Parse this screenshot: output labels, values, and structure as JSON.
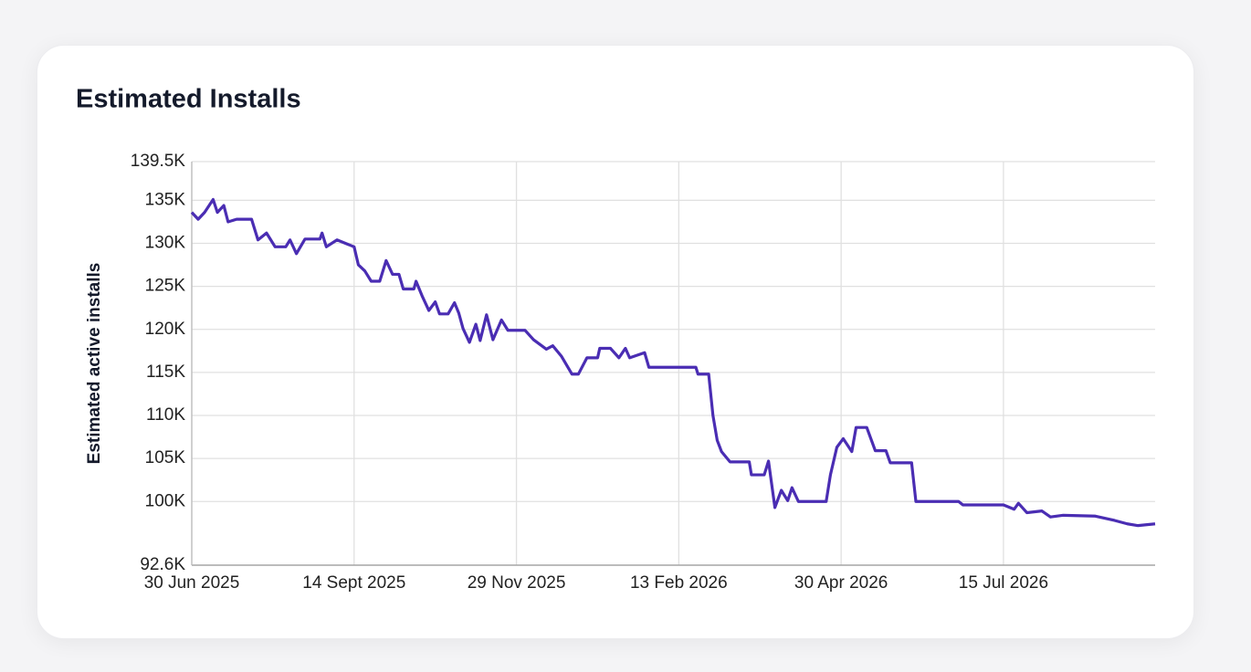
{
  "chart_data": {
    "type": "line",
    "title": "Estimated Installs",
    "ylabel": "Estimated active installs",
    "color": "#4a2db3",
    "grid": true,
    "xlim": [
      "2025-06-30",
      "2026-09-24"
    ],
    "xticks": [
      {
        "value": "2025-06-30",
        "label": "30 Jun 2025"
      },
      {
        "value": "2025-09-14",
        "label": "14 Sept 2025"
      },
      {
        "value": "2025-11-29",
        "label": "29 Nov 2025"
      },
      {
        "value": "2026-02-13",
        "label": "13 Feb 2026"
      },
      {
        "value": "2026-04-30",
        "label": "30 Apr 2026"
      },
      {
        "value": "2026-07-15",
        "label": "15 Jul 2026"
      }
    ],
    "ylim": [
      92600,
      139500
    ],
    "yticks": [
      {
        "value": 92600,
        "label": "92.6K"
      },
      {
        "value": 100000,
        "label": "100K"
      },
      {
        "value": 105000,
        "label": "105K"
      },
      {
        "value": 110000,
        "label": "110K"
      },
      {
        "value": 115000,
        "label": "115K"
      },
      {
        "value": 120000,
        "label": "120K"
      },
      {
        "value": 125000,
        "label": "125K"
      },
      {
        "value": 130000,
        "label": "130K"
      },
      {
        "value": 135000,
        "label": "135K"
      },
      {
        "value": 139500,
        "label": "139.5K"
      }
    ],
    "x": [
      "2025-06-30",
      "2025-07-03",
      "2025-07-06",
      "2025-07-10",
      "2025-07-12",
      "2025-07-15",
      "2025-07-17",
      "2025-07-21",
      "2025-07-28",
      "2025-07-31",
      "2025-08-04",
      "2025-08-06",
      "2025-08-08",
      "2025-08-13",
      "2025-08-15",
      "2025-08-18",
      "2025-08-22",
      "2025-08-29",
      "2025-08-30",
      "2025-09-01",
      "2025-09-06",
      "2025-09-14",
      "2025-09-16",
      "2025-09-19",
      "2025-09-22",
      "2025-09-26",
      "2025-09-29",
      "2025-10-02",
      "2025-10-05",
      "2025-10-07",
      "2025-10-12",
      "2025-10-13",
      "2025-10-16",
      "2025-10-19",
      "2025-10-22",
      "2025-10-24",
      "2025-10-28",
      "2025-10-31",
      "2025-11-02",
      "2025-11-04",
      "2025-11-07",
      "2025-11-10",
      "2025-11-12",
      "2025-11-15",
      "2025-11-18",
      "2025-11-22",
      "2025-11-25",
      "2025-12-03",
      "2025-12-07",
      "2025-12-13",
      "2025-12-16",
      "2025-12-20",
      "2025-12-25",
      "2025-12-28",
      "2026-01-01",
      "2026-01-06",
      "2026-01-07",
      "2026-01-12",
      "2026-01-16",
      "2026-01-19",
      "2026-01-21",
      "2026-01-28",
      "2026-01-30",
      "2026-02-21",
      "2026-02-22",
      "2026-02-27",
      "2026-03-01",
      "2026-03-03",
      "2026-03-05",
      "2026-03-09",
      "2026-03-18",
      "2026-03-19",
      "2026-03-25",
      "2026-03-27",
      "2026-03-30",
      "2026-04-02",
      "2026-04-05",
      "2026-04-07",
      "2026-04-10",
      "2026-04-23",
      "2026-04-25",
      "2026-04-28",
      "2026-05-01",
      "2026-05-05",
      "2026-05-07",
      "2026-05-12",
      "2026-05-16",
      "2026-05-21",
      "2026-05-23",
      "2026-06-02",
      "2026-06-04",
      "2026-06-24",
      "2026-06-26",
      "2026-07-15",
      "2026-07-20",
      "2026-07-22",
      "2026-07-26",
      "2026-08-02",
      "2026-08-06",
      "2026-08-12",
      "2026-08-27",
      "2026-09-05",
      "2026-09-11",
      "2026-09-16",
      "2026-09-24"
    ],
    "values": [
      133600,
      132800,
      133600,
      135100,
      133600,
      134400,
      132500,
      132800,
      132800,
      130400,
      131200,
      130400,
      129600,
      129600,
      130400,
      128800,
      130500,
      130500,
      131200,
      129600,
      130400,
      129600,
      127500,
      126800,
      125600,
      125600,
      128000,
      126400,
      126400,
      124700,
      124700,
      125600,
      123800,
      122200,
      123200,
      121800,
      121800,
      123100,
      121900,
      120100,
      118500,
      120600,
      118700,
      121700,
      118800,
      121100,
      119900,
      119900,
      118800,
      117700,
      118100,
      116900,
      114800,
      114800,
      116700,
      116700,
      117800,
      117800,
      116700,
      117800,
      116700,
      117300,
      115600,
      115600,
      114800,
      114800,
      110000,
      107100,
      105800,
      104600,
      104600,
      103100,
      103100,
      104700,
      99300,
      101300,
      100100,
      101600,
      100000,
      100000,
      103100,
      106300,
      107300,
      105800,
      108600,
      108600,
      105900,
      105900,
      104500,
      104500,
      100000,
      100000,
      99600,
      99600,
      99100,
      99800,
      98700,
      98900,
      98200,
      98400,
      98300,
      97800,
      97400,
      97200,
      97400
    ]
  }
}
